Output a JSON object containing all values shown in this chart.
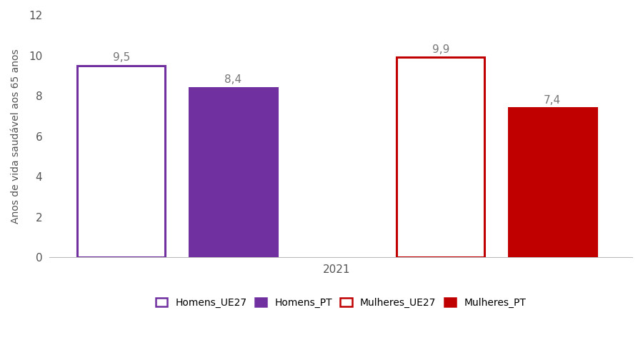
{
  "categories": [
    "Homens_UE27",
    "Homens_PT",
    "Mulheres_UE27",
    "Mulheres_PT"
  ],
  "values": [
    9.5,
    8.4,
    9.9,
    7.4
  ],
  "bar_colors": [
    "white",
    "#7030a0",
    "white",
    "#c00000"
  ],
  "edge_colors": [
    "#7030a0",
    "#7030a0",
    "#c00000",
    "#c00000"
  ],
  "xlabel": "2021",
  "ylabel": "Anos de vida saudável aos 65 anos",
  "ylim": [
    0,
    12
  ],
  "yticks": [
    0,
    2,
    4,
    6,
    8,
    10,
    12
  ],
  "label_values": [
    "9,5",
    "8,4",
    "9,9",
    "7,4"
  ],
  "legend_labels": [
    "Homens_UE27",
    "Homens_PT",
    "Mulheres_UE27",
    "Mulheres_PT"
  ],
  "legend_face_colors": [
    "white",
    "#7030a0",
    "white",
    "#c00000"
  ],
  "legend_edge_colors": [
    "#7030a0",
    "#7030a0",
    "#c00000",
    "#c00000"
  ],
  "background_color": "white",
  "bar_width": 0.55,
  "edge_linewidth": 2.2,
  "label_fontsize": 11,
  "xlabel_fontsize": 11,
  "ylabel_fontsize": 10,
  "tick_fontsize": 11,
  "x_positions": [
    1.0,
    1.7,
    3.0,
    3.7
  ]
}
